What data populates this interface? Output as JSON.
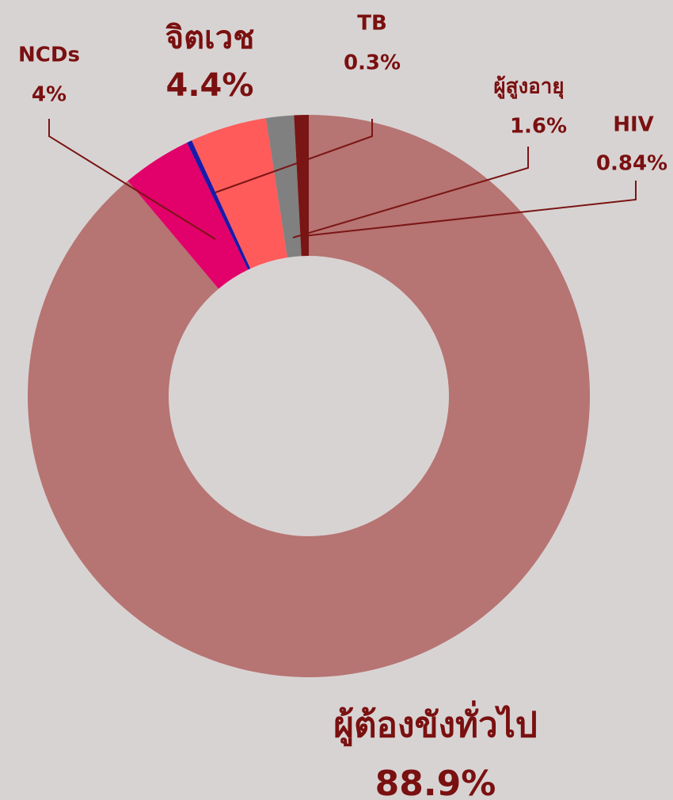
{
  "chart_data": {
    "type": "pie",
    "donut": true,
    "categories": [
      "ผู้ต้องขังทั่วไป",
      "NCDs",
      "TB",
      "จิตเวช",
      "ผู้สูงอายุ",
      "HIV"
    ],
    "values": [
      88.9,
      4,
      0.3,
      4.4,
      1.6,
      0.84
    ],
    "value_labels": [
      "88.9%",
      "4%",
      "0.3%",
      "4.4%",
      "1.6%",
      "0.84%"
    ],
    "colors": [
      "#b67472",
      "#e2006a",
      "#1a1aa8",
      "#ff5b5b",
      "#808080",
      "#7a1515"
    ]
  }
}
